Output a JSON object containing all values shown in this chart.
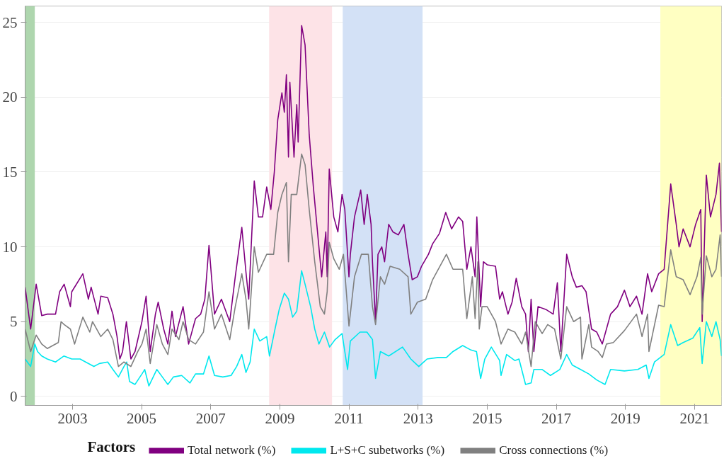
{
  "chart_data": {
    "type": "line",
    "legend_title": "Factors",
    "legend": "bottom",
    "grid": "y",
    "line_style": "solid",
    "marker": "none",
    "xlim": [
      2001.63,
      2021.78
    ],
    "ylim": [
      -0.6,
      26.1
    ],
    "xticks": [
      2003,
      2005,
      2007,
      2009,
      2011,
      2013,
      2015,
      2017,
      2019,
      2021
    ],
    "yticks": [
      0,
      5,
      10,
      15,
      20,
      25
    ],
    "bands": [
      {
        "axis": "x",
        "from": 2001.63,
        "to": 2001.91,
        "color": "#aed6ae"
      },
      {
        "axis": "x",
        "from": 2008.69,
        "to": 2010.51,
        "color": "#fde3e7"
      },
      {
        "axis": "x",
        "from": 2010.82,
        "to": 2013.13,
        "color": "#d3e1f6"
      },
      {
        "axis": "x",
        "from": 2020.01,
        "to": 2021.78,
        "color": "#ffffc2"
      }
    ],
    "series": [
      {
        "name": "Total network (%)",
        "color": "#800080",
        "x": [
          2001.63,
          2001.79,
          2001.95,
          2002.11,
          2002.27,
          2002.51,
          2002.63,
          2002.76,
          2002.94,
          2002.98,
          2003.3,
          2003.46,
          2003.54,
          2003.74,
          2003.82,
          2004.02,
          2004.17,
          2004.29,
          2004.37,
          2004.45,
          2004.56,
          2004.69,
          2004.81,
          2005.01,
          2005.13,
          2005.25,
          2005.4,
          2005.48,
          2005.64,
          2005.76,
          2005.88,
          2005.98,
          2006.2,
          2006.36,
          2006.56,
          2006.71,
          2006.83,
          2006.95,
          2007.11,
          2007.31,
          2007.55,
          2007.71,
          2007.9,
          2008.02,
          2008.1,
          2008.26,
          2008.38,
          2008.5,
          2008.62,
          2008.74,
          2008.84,
          2008.94,
          2009.06,
          2009.13,
          2009.19,
          2009.25,
          2009.29,
          2009.41,
          2009.49,
          2009.53,
          2009.63,
          2009.73,
          2009.85,
          2009.97,
          2010.09,
          2010.21,
          2010.33,
          2010.37,
          2010.43,
          2010.56,
          2010.68,
          2010.8,
          2010.88,
          2011.0,
          2011.04,
          2011.16,
          2011.34,
          2011.44,
          2011.53,
          2011.64,
          2011.68,
          2011.77,
          2011.84,
          2011.95,
          2012.03,
          2012.15,
          2012.27,
          2012.43,
          2012.59,
          2012.71,
          2012.83,
          2012.98,
          2013.1,
          2013.3,
          2013.42,
          2013.62,
          2013.8,
          2013.97,
          2014.17,
          2014.29,
          2014.41,
          2014.53,
          2014.65,
          2014.7,
          2014.81,
          2014.89,
          2015.0,
          2015.24,
          2015.36,
          2015.44,
          2015.6,
          2015.72,
          2015.84,
          2016.0,
          2016.11,
          2016.19,
          2016.27,
          2016.35,
          2016.47,
          2016.71,
          2016.91,
          2017.03,
          2017.13,
          2017.3,
          2017.46,
          2017.58,
          2017.74,
          2017.86,
          2018.02,
          2018.17,
          2018.33,
          2018.45,
          2018.57,
          2018.77,
          2018.97,
          2019.13,
          2019.32,
          2019.48,
          2019.64,
          2019.76,
          2019.96,
          2020.12,
          2020.31,
          2020.47,
          2020.55,
          2020.67,
          2020.87,
          2021.03,
          2021.18,
          2021.22,
          2021.34,
          2021.46,
          2021.62,
          2021.72,
          2021.78
        ],
        "values": [
          7.3,
          4.5,
          7.5,
          5.4,
          5.5,
          5.5,
          7.0,
          7.5,
          6.0,
          7.0,
          8.2,
          6.5,
          7.3,
          5.5,
          6.7,
          6.6,
          5.5,
          4.0,
          2.5,
          3.0,
          5.0,
          2.5,
          3.0,
          5.0,
          6.7,
          3.0,
          5.5,
          6.3,
          4.5,
          3.5,
          5.7,
          4.0,
          6.0,
          3.5,
          5.2,
          5.5,
          6.5,
          10.1,
          5.5,
          6.5,
          5.0,
          8.0,
          11.3,
          8.3,
          6.5,
          14.4,
          12.0,
          12.0,
          14.0,
          12.5,
          15.0,
          18.5,
          20.3,
          19.0,
          21.5,
          16.0,
          21.0,
          16.0,
          19.5,
          17.0,
          24.8,
          23.5,
          17.5,
          14.0,
          11.0,
          8.0,
          11.0,
          8.0,
          15.2,
          12.0,
          11.0,
          13.5,
          12.5,
          8.0,
          9.5,
          12.0,
          13.8,
          11.5,
          13.5,
          11.5,
          9.0,
          5.0,
          9.5,
          10.0,
          9.0,
          11.5,
          11.0,
          10.8,
          11.5,
          9.5,
          7.8,
          8.0,
          8.7,
          9.5,
          10.2,
          10.9,
          12.3,
          11.2,
          12.0,
          11.7,
          8.5,
          10.0,
          8.0,
          12.0,
          6.0,
          9.0,
          8.8,
          8.7,
          6.5,
          7.0,
          5.5,
          6.3,
          7.9,
          6.0,
          5.5,
          3.0,
          6.5,
          3.0,
          6.0,
          5.8,
          5.5,
          7.6,
          3.0,
          9.5,
          8.0,
          7.3,
          7.4,
          7.0,
          4.5,
          4.3,
          3.5,
          4.5,
          5.5,
          6.0,
          7.1,
          6.0,
          6.7,
          5.5,
          8.2,
          7.0,
          8.2,
          8.5,
          14.2,
          11.5,
          10.0,
          11.2,
          10.0,
          11.5,
          12.5,
          5.0,
          14.8,
          12.0,
          13.5,
          15.6,
          11.0
        ]
      },
      {
        "name": "L+S+C subetworks (%)",
        "color": "#00e8ee",
        "x": [
          2001.63,
          2001.79,
          2001.91,
          2001.99,
          2002.11,
          2002.27,
          2002.51,
          2002.75,
          2002.98,
          2003.22,
          2003.38,
          2003.62,
          2003.78,
          2004.02,
          2004.17,
          2004.33,
          2004.49,
          2004.57,
          2004.65,
          2004.81,
          2005.01,
          2005.09,
          2005.21,
          2005.44,
          2005.6,
          2005.76,
          2005.92,
          2006.16,
          2006.4,
          2006.56,
          2006.79,
          2006.95,
          2007.11,
          2007.35,
          2007.59,
          2007.75,
          2007.9,
          2008.02,
          2008.14,
          2008.26,
          2008.42,
          2008.62,
          2008.7,
          2008.86,
          2008.98,
          2009.13,
          2009.25,
          2009.37,
          2009.49,
          2009.63,
          2009.73,
          2009.89,
          2010.01,
          2010.13,
          2010.29,
          2010.44,
          2010.6,
          2010.8,
          2010.96,
          2011.04,
          2011.32,
          2011.52,
          2011.68,
          2011.77,
          2011.91,
          2012.15,
          2012.55,
          2012.79,
          2013.02,
          2013.26,
          2013.58,
          2013.82,
          2014.01,
          2014.29,
          2014.53,
          2014.69,
          2014.81,
          2014.93,
          2015.12,
          2015.36,
          2015.4,
          2015.56,
          2015.8,
          2015.92,
          2016.11,
          2016.27,
          2016.35,
          2016.59,
          2016.83,
          2017.1,
          2017.3,
          2017.46,
          2017.7,
          2017.94,
          2018.17,
          2018.41,
          2018.57,
          2018.97,
          2019.36,
          2019.6,
          2019.68,
          2019.84,
          2020.12,
          2020.31,
          2020.51,
          2020.67,
          2020.95,
          2021.15,
          2021.22,
          2021.34,
          2021.5,
          2021.62,
          2021.74,
          2021.78
        ],
        "values": [
          2.5,
          2.0,
          3.5,
          3.0,
          2.7,
          2.5,
          2.3,
          2.7,
          2.5,
          2.5,
          2.3,
          2.0,
          2.2,
          2.3,
          1.8,
          1.3,
          2.0,
          2.3,
          1.0,
          0.8,
          1.5,
          1.8,
          0.7,
          1.8,
          1.3,
          0.8,
          1.3,
          1.4,
          0.9,
          1.5,
          1.5,
          2.7,
          1.4,
          1.3,
          1.4,
          2.0,
          2.8,
          1.6,
          2.3,
          4.5,
          3.7,
          4.0,
          2.7,
          4.5,
          5.8,
          6.9,
          6.5,
          5.3,
          5.7,
          8.4,
          7.5,
          6.0,
          4.5,
          3.5,
          4.3,
          3.3,
          3.8,
          4.2,
          1.8,
          3.7,
          4.3,
          4.3,
          3.8,
          1.2,
          3.0,
          2.7,
          3.3,
          2.5,
          2.0,
          2.5,
          2.6,
          2.6,
          3.0,
          3.4,
          3.1,
          3.0,
          1.2,
          2.5,
          3.3,
          2.4,
          1.4,
          2.8,
          2.4,
          2.5,
          0.8,
          0.9,
          1.8,
          1.8,
          1.4,
          1.8,
          2.8,
          2.1,
          1.8,
          1.5,
          1.1,
          0.8,
          1.8,
          1.7,
          1.8,
          2.1,
          1.2,
          2.3,
          2.8,
          4.8,
          3.4,
          3.6,
          3.9,
          4.6,
          2.2,
          5.0,
          4.0,
          5.0,
          3.8,
          2.7
        ]
      },
      {
        "name": "Cross connections (%)",
        "color": "#808080",
        "x": [
          2001.63,
          2001.79,
          2001.95,
          2002.11,
          2002.27,
          2002.59,
          2002.67,
          2002.76,
          2002.94,
          2003.06,
          2003.3,
          2003.5,
          2003.58,
          2003.82,
          2004.02,
          2004.17,
          2004.33,
          2004.49,
          2004.69,
          2004.89,
          2005.01,
          2005.13,
          2005.25,
          2005.44,
          2005.6,
          2005.76,
          2005.88,
          2006.08,
          2006.2,
          2006.36,
          2006.56,
          2006.79,
          2006.95,
          2007.11,
          2007.31,
          2007.55,
          2007.71,
          2007.9,
          2008.02,
          2008.1,
          2008.26,
          2008.38,
          2008.62,
          2008.82,
          2008.94,
          2009.06,
          2009.19,
          2009.25,
          2009.33,
          2009.49,
          2009.63,
          2009.73,
          2009.85,
          2010.01,
          2010.17,
          2010.29,
          2010.37,
          2010.43,
          2010.56,
          2010.72,
          2010.84,
          2011.0,
          2011.16,
          2011.36,
          2011.56,
          2011.68,
          2011.77,
          2011.91,
          2012.03,
          2012.19,
          2012.47,
          2012.71,
          2012.79,
          2012.98,
          2013.22,
          2013.42,
          2013.82,
          2014.01,
          2014.29,
          2014.41,
          2014.57,
          2014.65,
          2014.73,
          2014.77,
          2014.85,
          2015.0,
          2015.24,
          2015.4,
          2015.6,
          2015.8,
          2016.0,
          2016.11,
          2016.27,
          2016.39,
          2016.59,
          2016.75,
          2016.95,
          2017.13,
          2017.3,
          2017.5,
          2017.7,
          2017.74,
          2017.94,
          2018.02,
          2018.21,
          2018.33,
          2018.45,
          2018.65,
          2018.97,
          2019.32,
          2019.48,
          2019.64,
          2019.68,
          2019.96,
          2020.12,
          2020.31,
          2020.47,
          2020.67,
          2020.87,
          2021.07,
          2021.18,
          2021.22,
          2021.34,
          2021.5,
          2021.62,
          2021.74,
          2021.78
        ],
        "values": [
          4.5,
          3.0,
          4.1,
          3.5,
          3.2,
          3.6,
          5.0,
          4.8,
          4.5,
          3.5,
          5.3,
          4.3,
          5.0,
          4.0,
          4.5,
          3.8,
          2.0,
          2.3,
          2.0,
          3.0,
          3.5,
          4.5,
          2.2,
          4.8,
          3.5,
          2.8,
          4.5,
          3.8,
          5.0,
          3.8,
          3.5,
          4.3,
          7.0,
          4.5,
          5.5,
          3.8,
          6.0,
          8.2,
          6.5,
          4.5,
          10.0,
          8.3,
          9.5,
          9.5,
          12.3,
          13.5,
          14.3,
          9.0,
          13.5,
          13.5,
          16.2,
          15.5,
          12.5,
          9.0,
          6.0,
          5.5,
          7.0,
          10.3,
          9.2,
          8.5,
          9.5,
          4.7,
          8.0,
          9.5,
          9.5,
          6.0,
          4.8,
          8.0,
          7.5,
          8.7,
          8.5,
          8.0,
          5.5,
          6.3,
          6.5,
          7.8,
          9.5,
          8.5,
          8.5,
          5.2,
          8.0,
          5.2,
          9.0,
          4.5,
          6.0,
          6.0,
          5.0,
          3.5,
          4.5,
          4.3,
          3.5,
          4.3,
          2.0,
          5.0,
          4.2,
          4.8,
          4.5,
          2.5,
          6.0,
          5.0,
          5.3,
          2.5,
          4.8,
          3.3,
          3.0,
          2.6,
          3.5,
          3.6,
          4.4,
          5.5,
          4.0,
          5.5,
          3.0,
          6.1,
          6.0,
          9.8,
          8.0,
          7.8,
          6.8,
          8.0,
          9.3,
          5.5,
          9.4,
          8.0,
          8.5,
          10.8,
          8.0
        ]
      }
    ]
  }
}
